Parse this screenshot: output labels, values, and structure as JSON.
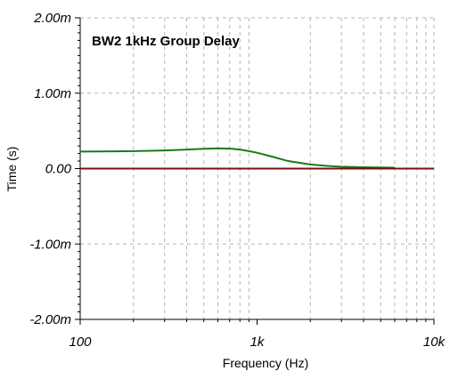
{
  "chart_data": {
    "type": "line",
    "title": "BW2 1kHz Group Delay",
    "xlabel": "Frequency (Hz)",
    "ylabel": "Time (s)",
    "x_scale": "log",
    "xlim": [
      100,
      10000
    ],
    "ylim": [
      -0.002,
      0.002
    ],
    "grid": true,
    "x_ticks": [
      {
        "value": 100,
        "label": "100"
      },
      {
        "value": 1000,
        "label": "1k"
      },
      {
        "value": 10000,
        "label": "10k"
      }
    ],
    "y_ticks": [
      {
        "value": 0.002,
        "label": "2.00m"
      },
      {
        "value": 0.001,
        "label": "1.00m"
      },
      {
        "value": 0,
        "label": "0.00"
      },
      {
        "value": -0.001,
        "label": "-1.00m"
      },
      {
        "value": -0.002,
        "label": "-2.00m"
      }
    ],
    "series": [
      {
        "color": "#1a7a1a",
        "x": [
          100,
          150,
          200,
          300,
          400,
          500,
          600,
          700,
          800,
          900,
          1000,
          1200,
          1500,
          2000,
          2500,
          3000,
          4000,
          5000,
          6000
        ],
        "y": [
          0.000225,
          0.000228,
          0.000232,
          0.00024,
          0.000252,
          0.000262,
          0.000268,
          0.000265,
          0.000252,
          0.000232,
          0.00021,
          0.000162,
          0.0001,
          5.5e-05,
          3.5e-05,
          2.5e-05,
          1.8e-05,
          1.5e-05,
          1.2e-05
        ]
      },
      {
        "color": "#7a1010",
        "x": [
          100,
          10000
        ],
        "y": [
          0,
          0
        ]
      }
    ]
  }
}
